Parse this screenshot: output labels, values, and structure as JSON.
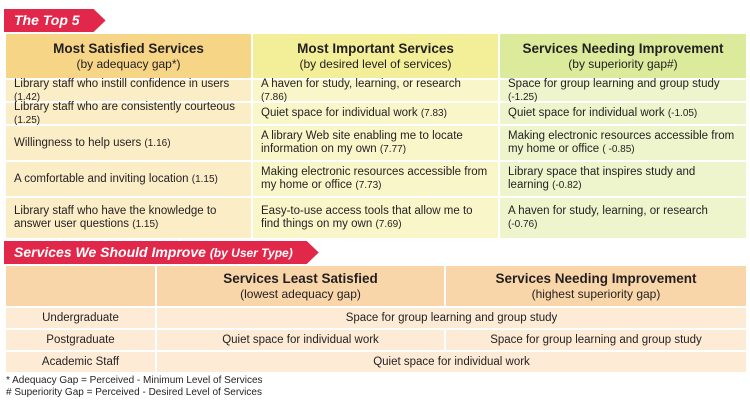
{
  "top5": {
    "banner": "The Top 5",
    "columns": [
      {
        "title": "Most Satisfied Services",
        "subtitle": "(by adequacy gap*)"
      },
      {
        "title": "Most Important Services",
        "subtitle": "(by desired level of services)"
      },
      {
        "title": "Services Needing Improvement",
        "subtitle": "(by superiority gap#)"
      }
    ],
    "rows": [
      [
        {
          "text": "Library staff who instill confidence in users",
          "score": "(1.42)"
        },
        {
          "text": "A haven for study, learning, or research",
          "score": "(7.86)"
        },
        {
          "text": "Space for group learning and group study",
          "score": "(-1.25)"
        }
      ],
      [
        {
          "text": "Library staff who are consistently courteous",
          "score": "(1.25)"
        },
        {
          "text": "Quiet space for individual work",
          "score": "(7.83)"
        },
        {
          "text": "Quiet space for individual work",
          "score": "(-1.05)"
        }
      ],
      [
        {
          "text": "Willingness to help users",
          "score": "(1.16)"
        },
        {
          "text": "A library Web site enabling me to locate information on my own",
          "score": "(7.77)"
        },
        {
          "text": "Making electronic resources accessible from my home or office",
          "score": "( -0.85)"
        }
      ],
      [
        {
          "text": "A comfortable and inviting location",
          "score": "(1.15)"
        },
        {
          "text": "Making electronic resources accessible from my home or office",
          "score": "(7.73)"
        },
        {
          "text": "Library space that inspires study and learning",
          "score": "(-0.82)"
        }
      ],
      [
        {
          "text": "Library staff who have the knowledge to answer user questions",
          "score": "(1.15)"
        },
        {
          "text": "Easy-to-use access tools that allow me to find things on my own",
          "score": "(7.69)"
        },
        {
          "text": "A haven for study, learning, or research",
          "score": "(-0.76)"
        }
      ]
    ]
  },
  "improve": {
    "banner": "Services We Should Improve",
    "banner_sub": "(by User Type)",
    "columns": [
      {
        "title": "Services Least Satisfied",
        "subtitle": "(lowest adequacy gap)"
      },
      {
        "title": "Services Needing Improvement",
        "subtitle": "(highest superiority gap)"
      }
    ],
    "rows": {
      "undergraduate": {
        "label": "Undergraduate",
        "both": "Space for group learning and group study"
      },
      "postgraduate": {
        "label": "Postgraduate",
        "least": "Quiet space for individual work",
        "needing": "Space for group learning and group study"
      },
      "academic": {
        "label": "Academic Staff",
        "both": "Quiet space for individual work"
      }
    }
  },
  "notes": [
    "* Adequacy Gap = Perceived - Minimum Level of Services",
    "# Superiority Gap = Perceived - Desired Level of Services"
  ],
  "colors": {
    "banner": "#e2284a",
    "col1_header": "#f7d587",
    "col2_header": "#f3ee98",
    "col3_header": "#dcea9c",
    "improve_header": "#f9d6aa",
    "improve_row": "#fdebd6"
  }
}
